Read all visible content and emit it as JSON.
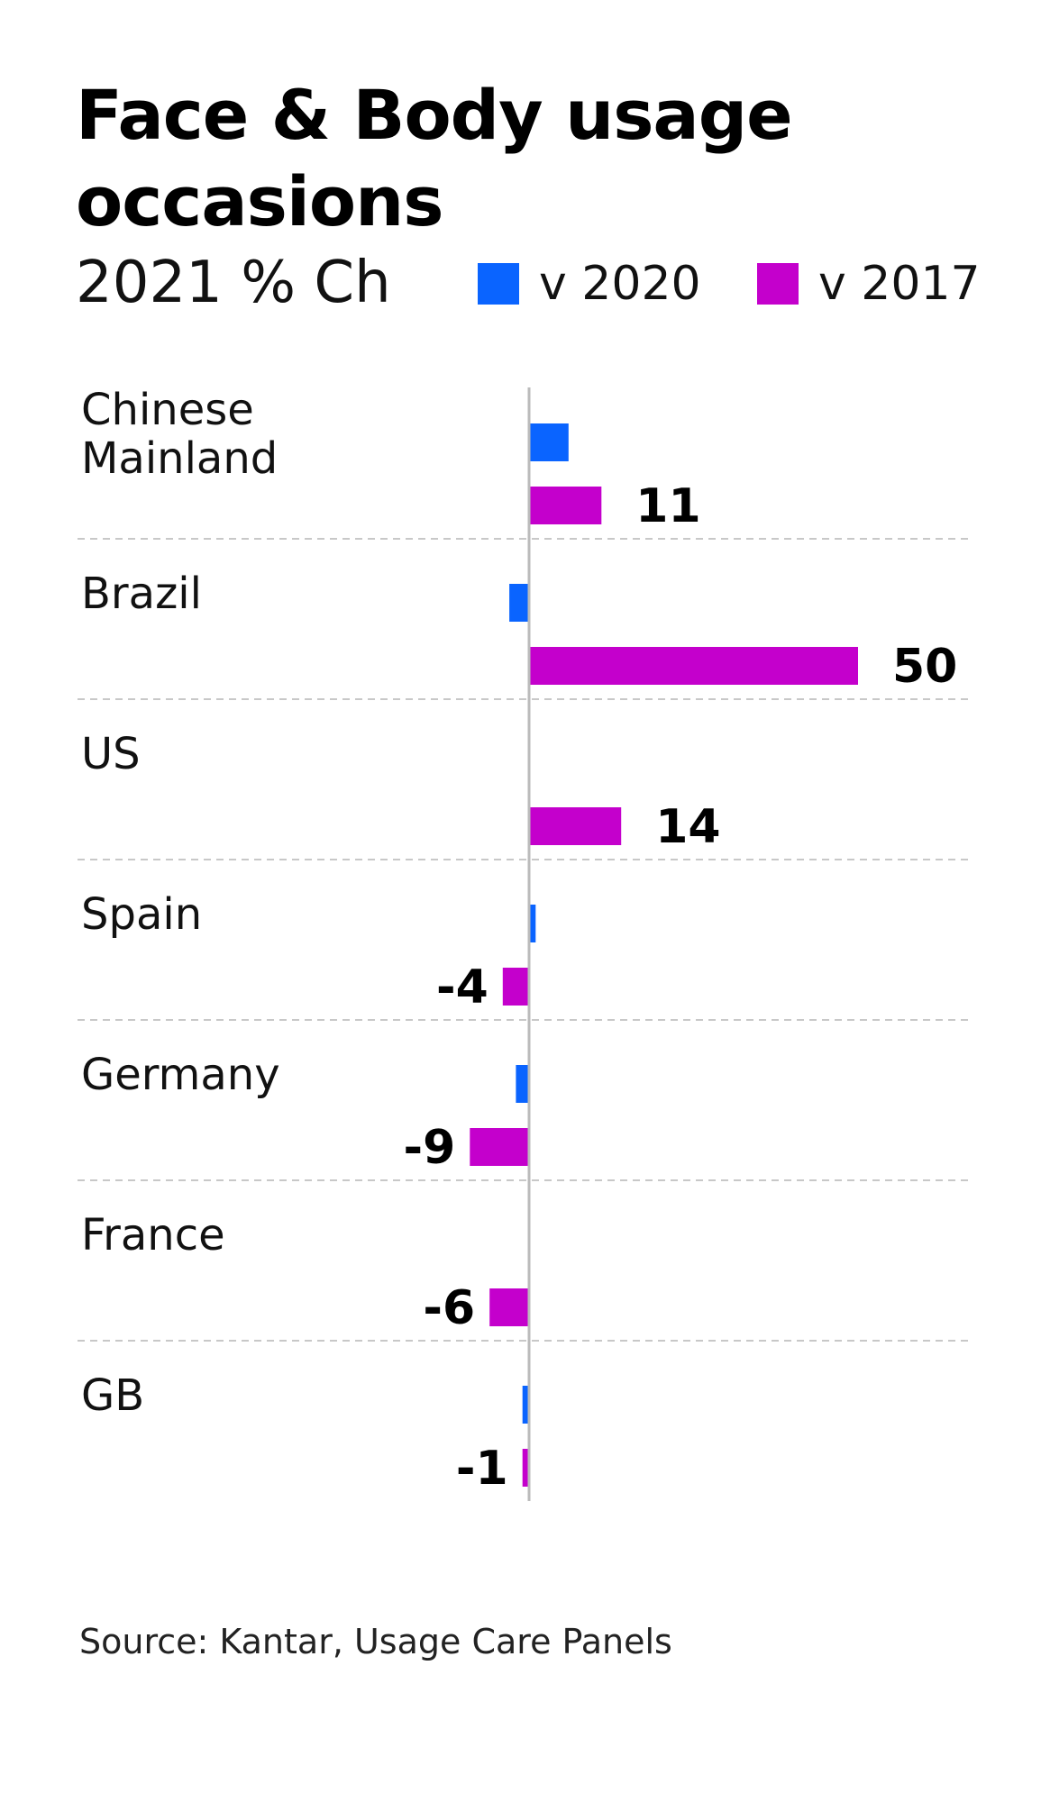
{
  "title": "Face & Body usage occasions",
  "subtitle": "2021 % Ch",
  "source": "Source: Kantar, Usage Care Panels",
  "colors": {
    "v2020": "#0a64ff",
    "v2017": "#c400cc",
    "axis": "#bbbbbb",
    "divider": "#c8c8c8"
  },
  "legend": [
    {
      "label": "v 2020",
      "color": "#0a64ff"
    },
    {
      "label": "v 2017",
      "color": "#c400cc"
    }
  ],
  "chart_data": {
    "type": "bar",
    "orientation": "horizontal",
    "categories": [
      [
        "Chinese",
        "Mainland"
      ],
      [
        "Brazil"
      ],
      [
        "US"
      ],
      [
        "Spain"
      ],
      [
        "Germany"
      ],
      [
        "France"
      ],
      [
        "GB"
      ]
    ],
    "series": [
      {
        "name": "v 2020",
        "values": [
          6,
          -3,
          0,
          1,
          -2,
          0,
          -1
        ],
        "labels": [
          "",
          "",
          "",
          "",
          "",
          "",
          ""
        ]
      },
      {
        "name": "v 2017",
        "values": [
          11,
          50,
          14,
          -4,
          -9,
          -6,
          -1
        ],
        "labels": [
          "11",
          "50",
          "14",
          "-4",
          "-9",
          "-6",
          "-1"
        ]
      }
    ],
    "xlim": [
      -20,
      60
    ],
    "grid": false,
    "legend_position": "top"
  }
}
